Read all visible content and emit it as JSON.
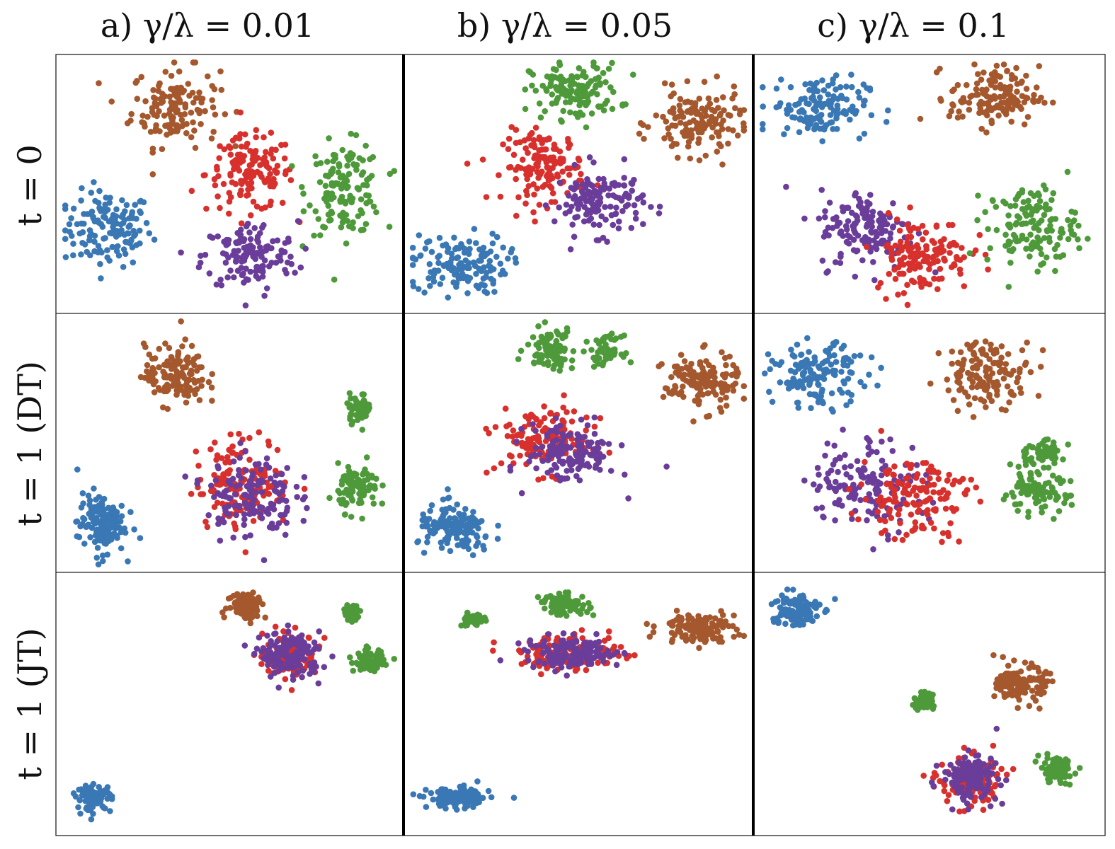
{
  "chart_data": {
    "type": "scatter",
    "layout": "grid",
    "column_titles": [
      "a) γ/λ = 0.01",
      "b) γ/λ = 0.05",
      "c) γ/λ = 0.1"
    ],
    "row_titles": [
      "t = 0",
      "t = 1 (DT)",
      "t = 1 (JT)"
    ],
    "axes": "none",
    "grid": false,
    "legend": "none",
    "x_range": [
      0,
      100
    ],
    "y_range": [
      0,
      100
    ],
    "colors": {
      "blue": "#3a78b5",
      "brown": "#a5582d",
      "red": "#d8302c",
      "green": "#4e9a3a",
      "purple": "#6a3d9a"
    },
    "note": "Each panel shows five point clouds; values below are approximate cluster centers (x,y in 0–100 panel units), spreads and point counts.",
    "panels": [
      {
        "row": 0,
        "col": 0,
        "clusters": [
          {
            "color": "blue",
            "cx": 14,
            "cy": 32,
            "sx": 6.5,
            "sy": 7.5,
            "n": 140
          },
          {
            "color": "brown",
            "cx": 34,
            "cy": 81,
            "sx": 6.5,
            "sy": 8.0,
            "n": 140
          },
          {
            "color": "red",
            "cx": 56,
            "cy": 54,
            "sx": 6.5,
            "sy": 7.5,
            "n": 140
          },
          {
            "color": "green",
            "cx": 84,
            "cy": 48,
            "sx": 5.5,
            "sy": 9.0,
            "n": 140
          },
          {
            "color": "purple",
            "cx": 56,
            "cy": 21,
            "sx": 7.0,
            "sy": 7.0,
            "n": 140
          }
        ]
      },
      {
        "row": 0,
        "col": 1,
        "clusters": [
          {
            "color": "blue",
            "cx": 15,
            "cy": 18,
            "sx": 7.0,
            "sy": 6.0,
            "n": 140
          },
          {
            "color": "green",
            "cx": 49,
            "cy": 87,
            "sx": 6.5,
            "sy": 5.5,
            "n": 140
          },
          {
            "color": "red",
            "cx": 40,
            "cy": 57,
            "sx": 6.0,
            "sy": 7.0,
            "n": 140
          },
          {
            "color": "purple",
            "cx": 56,
            "cy": 43,
            "sx": 6.5,
            "sy": 6.5,
            "n": 140
          },
          {
            "color": "brown",
            "cx": 85,
            "cy": 74,
            "sx": 6.5,
            "sy": 6.5,
            "n": 140
          }
        ]
      },
      {
        "row": 0,
        "col": 2,
        "clusters": [
          {
            "color": "blue",
            "cx": 18,
            "cy": 81,
            "sx": 7.0,
            "sy": 6.0,
            "n": 140
          },
          {
            "color": "brown",
            "cx": 69,
            "cy": 85,
            "sx": 6.5,
            "sy": 6.0,
            "n": 140
          },
          {
            "color": "purple",
            "cx": 32,
            "cy": 32,
            "sx": 7.0,
            "sy": 8.0,
            "n": 140
          },
          {
            "color": "red",
            "cx": 48,
            "cy": 22,
            "sx": 7.0,
            "sy": 7.5,
            "n": 140
          },
          {
            "color": "green",
            "cx": 80,
            "cy": 33,
            "sx": 6.5,
            "sy": 8.0,
            "n": 140
          }
        ]
      },
      {
        "row": 1,
        "col": 0,
        "clusters": [
          {
            "color": "blue",
            "cx": 12,
            "cy": 18,
            "sx": 3.5,
            "sy": 6.0,
            "n": 140
          },
          {
            "color": "brown",
            "cx": 34,
            "cy": 77,
            "sx": 4.5,
            "sy": 6.0,
            "n": 140
          },
          {
            "color": "red",
            "cx": 54,
            "cy": 34,
            "sx": 7.0,
            "sy": 9.0,
            "n": 140
          },
          {
            "color": "purple",
            "cx": 56,
            "cy": 29,
            "sx": 6.5,
            "sy": 8.5,
            "n": 140
          },
          {
            "color": "green",
            "cx": 88,
            "cy": 64,
            "sx": 1.8,
            "sy": 2.8,
            "n": 50
          },
          {
            "color": "green",
            "cx": 88,
            "cy": 32,
            "sx": 3.0,
            "sy": 4.5,
            "n": 90
          }
        ]
      },
      {
        "row": 1,
        "col": 1,
        "clusters": [
          {
            "color": "blue",
            "cx": 14,
            "cy": 15,
            "sx": 5.5,
            "sy": 5.0,
            "n": 140
          },
          {
            "color": "green",
            "cx": 42,
            "cy": 88,
            "sx": 3.5,
            "sy": 4.0,
            "n": 90
          },
          {
            "color": "green",
            "cx": 58,
            "cy": 87,
            "sx": 2.3,
            "sy": 2.8,
            "n": 50
          },
          {
            "color": "red",
            "cx": 40,
            "cy": 51,
            "sx": 7.0,
            "sy": 6.5,
            "n": 140
          },
          {
            "color": "purple",
            "cx": 48,
            "cy": 46,
            "sx": 6.5,
            "sy": 6.0,
            "n": 140
          },
          {
            "color": "brown",
            "cx": 86,
            "cy": 74,
            "sx": 5.5,
            "sy": 5.5,
            "n": 140
          }
        ]
      },
      {
        "row": 1,
        "col": 2,
        "clusters": [
          {
            "color": "blue",
            "cx": 18,
            "cy": 77,
            "sx": 7.0,
            "sy": 6.0,
            "n": 140
          },
          {
            "color": "brown",
            "cx": 67,
            "cy": 78,
            "sx": 6.5,
            "sy": 6.5,
            "n": 140
          },
          {
            "color": "purple",
            "cx": 32,
            "cy": 34,
            "sx": 8.5,
            "sy": 9.0,
            "n": 140
          },
          {
            "color": "red",
            "cx": 46,
            "cy": 29,
            "sx": 8.0,
            "sy": 8.5,
            "n": 140
          },
          {
            "color": "green",
            "cx": 82,
            "cy": 46,
            "sx": 3.5,
            "sy": 2.5,
            "n": 55
          },
          {
            "color": "green",
            "cx": 81,
            "cy": 30,
            "sx": 5.0,
            "sy": 4.0,
            "n": 90
          }
        ]
      },
      {
        "row": 2,
        "col": 0,
        "clusters": [
          {
            "color": "blue",
            "cx": 10,
            "cy": 13,
            "sx": 2.5,
            "sy": 2.5,
            "n": 90
          },
          {
            "color": "brown",
            "cx": 55,
            "cy": 89,
            "sx": 2.8,
            "sy": 2.8,
            "n": 90
          },
          {
            "color": "red",
            "cx": 68,
            "cy": 69,
            "sx": 4.0,
            "sy": 4.0,
            "n": 120
          },
          {
            "color": "purple",
            "cx": 68,
            "cy": 69,
            "sx": 4.5,
            "sy": 4.5,
            "n": 140
          },
          {
            "color": "green",
            "cx": 86,
            "cy": 86,
            "sx": 1.2,
            "sy": 1.5,
            "n": 40
          },
          {
            "color": "green",
            "cx": 91,
            "cy": 67,
            "sx": 2.2,
            "sy": 2.0,
            "n": 80
          }
        ]
      },
      {
        "row": 2,
        "col": 1,
        "clusters": [
          {
            "color": "blue",
            "cx": 15,
            "cy": 13,
            "sx": 4.5,
            "sy": 2.0,
            "n": 140
          },
          {
            "color": "green",
            "cx": 19,
            "cy": 83,
            "sx": 2.0,
            "sy": 1.2,
            "n": 40
          },
          {
            "color": "green",
            "cx": 46,
            "cy": 89,
            "sx": 3.5,
            "sy": 2.0,
            "n": 90
          },
          {
            "color": "red",
            "cx": 48,
            "cy": 70,
            "sx": 7.5,
            "sy": 3.5,
            "n": 140
          },
          {
            "color": "purple",
            "cx": 49,
            "cy": 70,
            "sx": 7.0,
            "sy": 3.0,
            "n": 140
          },
          {
            "color": "brown",
            "cx": 85,
            "cy": 80,
            "sx": 5.5,
            "sy": 2.8,
            "n": 120
          }
        ]
      },
      {
        "row": 2,
        "col": 2,
        "clusters": [
          {
            "color": "blue",
            "cx": 11,
            "cy": 87,
            "sx": 3.5,
            "sy": 3.5,
            "n": 130
          },
          {
            "color": "brown",
            "cx": 77,
            "cy": 58,
            "sx": 3.5,
            "sy": 3.5,
            "n": 130
          },
          {
            "color": "green",
            "cx": 48,
            "cy": 51,
            "sx": 1.6,
            "sy": 1.6,
            "n": 50
          },
          {
            "color": "red",
            "cx": 62,
            "cy": 20,
            "sx": 4.5,
            "sy": 5.0,
            "n": 140
          },
          {
            "color": "purple",
            "cx": 62,
            "cy": 21,
            "sx": 4.0,
            "sy": 4.5,
            "n": 140
          },
          {
            "color": "green",
            "cx": 87,
            "cy": 24,
            "sx": 2.5,
            "sy": 2.5,
            "n": 80
          }
        ]
      }
    ]
  }
}
